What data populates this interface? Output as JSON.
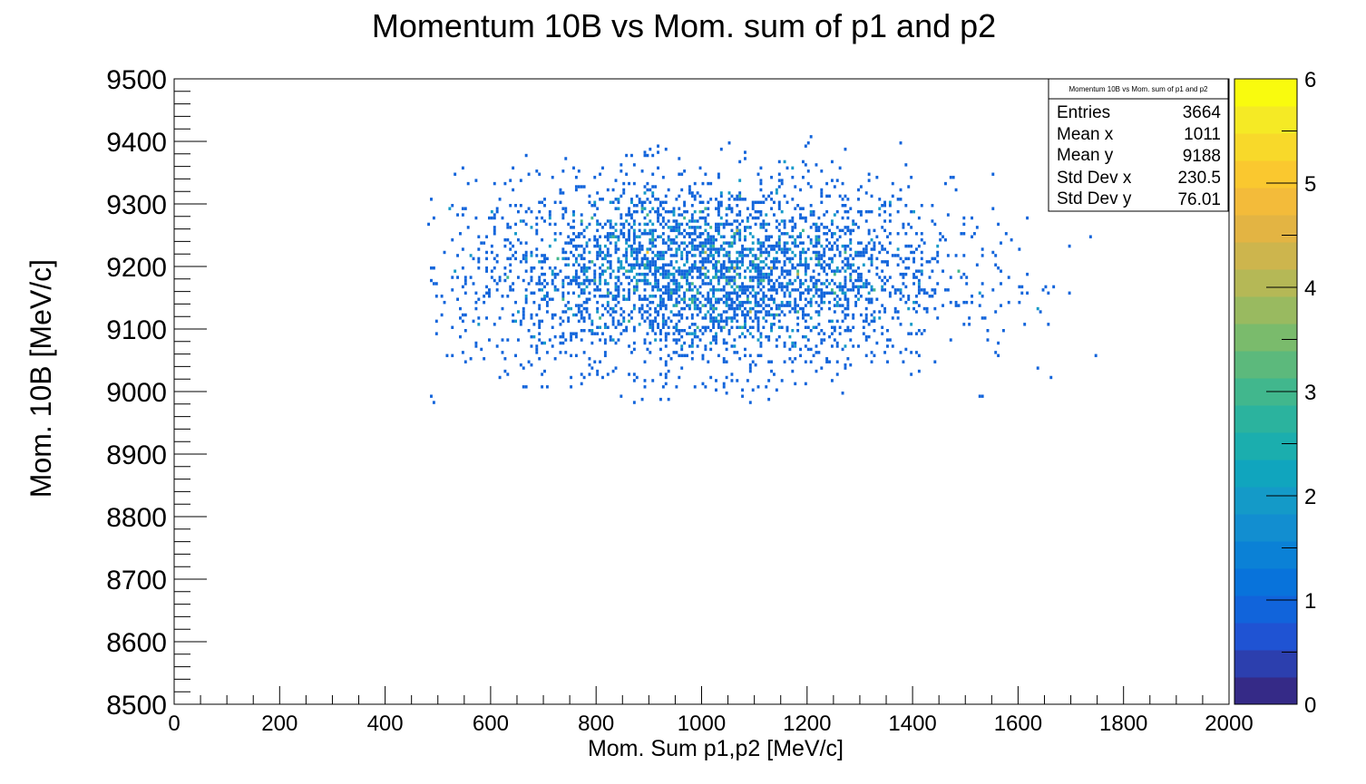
{
  "chart_data": {
    "type": "heatmap",
    "title": "Momentum 10B vs Mom. sum of p1 and p2",
    "xlabel": "Mom. Sum p1,p2 [MeV/c]",
    "ylabel": "Mom. 10B [MeV/c]",
    "xlim": [
      0,
      2000
    ],
    "ylim": [
      8500,
      9500
    ],
    "x_ticks": [
      "0",
      "200",
      "400",
      "600",
      "800",
      "1000",
      "1200",
      "1400",
      "1600",
      "1800",
      "2000"
    ],
    "y_ticks": [
      "8500",
      "8600",
      "8700",
      "8800",
      "8900",
      "9000",
      "9100",
      "9200",
      "9300",
      "9400",
      "9500"
    ],
    "zlim": [
      0,
      6
    ],
    "z_ticks": [
      "0",
      "1",
      "2",
      "3",
      "4",
      "5",
      "6"
    ],
    "bin_width_x": 5,
    "bin_width_y": 5,
    "colormap": [
      "#352a87",
      "#2c3fae",
      "#1f53d3",
      "#1164db",
      "#0873db",
      "#0b81d6",
      "#128ed0",
      "#149ac8",
      "#10a5be",
      "#1baeae",
      "#2bb39e",
      "#41b78d",
      "#5cb97c",
      "#7abb6c",
      "#99ba60",
      "#b5b856",
      "#cdb54d",
      "#e3b443",
      "#f3bb3a",
      "#fac82f",
      "#f8d92a",
      "#f5ea25",
      "#f9fb0e"
    ],
    "stats": {
      "title": "Momentum 10B vs Mom. sum of p1 and p2",
      "rows": [
        {
          "label": "Entries",
          "value": "3664"
        },
        {
          "label": "Mean x",
          "value": "1011"
        },
        {
          "label": "Mean y",
          "value": "9188"
        },
        {
          "label": "Std Dev x",
          "value": "230.5"
        },
        {
          "label": "Std Dev y",
          "value": "76.01"
        }
      ]
    },
    "distribution": {
      "entries": 3664,
      "mean_x": 1011,
      "mean_y": 9188,
      "std_x": 230.5,
      "std_y": 76.01,
      "x_range": [
        480,
        1760
      ],
      "y_range": [
        8980,
        9420
      ]
    }
  }
}
